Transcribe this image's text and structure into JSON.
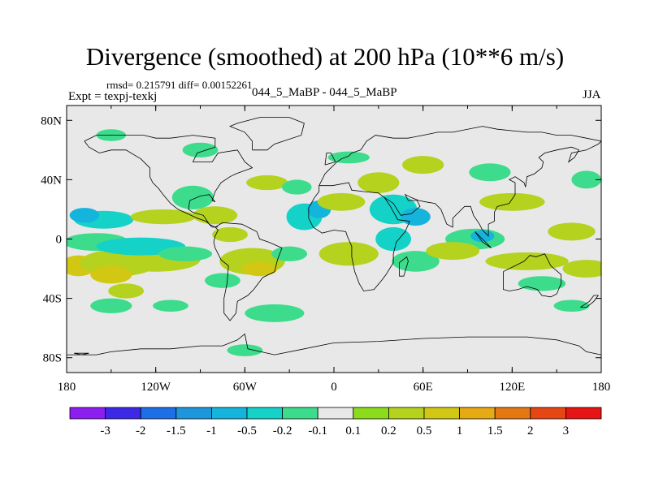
{
  "header": {
    "title": "Divergence (smoothed) at 200 hPa (10**6 m/s)",
    "stats": "rmsd= 0.215791 diff= 0.00152261",
    "expt": "Expt = texpj-texkj",
    "case": "044_5_MaBP - 044_5_MaBP",
    "season": "JJA"
  },
  "chart_data": {
    "type": "heatmap",
    "title": "Divergence (smoothed) at 200 hPa (10**6 m/s)",
    "xlabel": "",
    "ylabel": "",
    "xlim": [
      -180,
      180
    ],
    "ylim": [
      -90,
      90
    ],
    "x_ticks": [
      {
        "value": -180,
        "label": "180"
      },
      {
        "value": -120,
        "label": "120W"
      },
      {
        "value": -60,
        "label": "60W"
      },
      {
        "value": 0,
        "label": "0"
      },
      {
        "value": 60,
        "label": "60E"
      },
      {
        "value": 120,
        "label": "120E"
      },
      {
        "value": 180,
        "label": "180"
      }
    ],
    "y_ticks": [
      {
        "value": 80,
        "label": "80N"
      },
      {
        "value": 40,
        "label": "40N"
      },
      {
        "value": 0,
        "label": "0"
      },
      {
        "value": -40,
        "label": "40S"
      },
      {
        "value": -80,
        "label": "80S"
      }
    ],
    "colorbar": {
      "colors": [
        "#8c1ef0",
        "#3c28e6",
        "#1e6ee6",
        "#1e96dc",
        "#14b4dc",
        "#14d2c8",
        "#3cdc8c",
        "#e8e8e8",
        "#8cdc1e",
        "#b4d21e",
        "#d2c814",
        "#e6aa14",
        "#e67814",
        "#e64614",
        "#e61414"
      ],
      "labels": [
        "-3",
        "-2",
        "-1.5",
        "-1",
        "-0.5",
        "-0.2",
        "-0.1",
        "0.1",
        "0.2",
        "0.5",
        "1",
        "1.5",
        "2",
        "3"
      ]
    },
    "features": [
      {
        "lon": -172,
        "lat": -18,
        "rx": 12,
        "ry": 7,
        "level": 10
      },
      {
        "lon": -145,
        "lat": -16,
        "rx": 26,
        "ry": 9,
        "level": 9
      },
      {
        "lon": -150,
        "lat": -24,
        "rx": 14,
        "ry": 6,
        "level": 10
      },
      {
        "lon": -120,
        "lat": -14,
        "rx": 30,
        "ry": 8,
        "level": 9
      },
      {
        "lon": -160,
        "lat": -2,
        "rx": 22,
        "ry": 6,
        "level": 6
      },
      {
        "lon": -130,
        "lat": -5,
        "rx": 30,
        "ry": 6,
        "level": 5
      },
      {
        "lon": -155,
        "lat": 13,
        "rx": 20,
        "ry": 6,
        "level": 5
      },
      {
        "lon": -168,
        "lat": 16,
        "rx": 10,
        "ry": 5,
        "level": 4
      },
      {
        "lon": -115,
        "lat": 15,
        "rx": 22,
        "ry": 5,
        "level": 9
      },
      {
        "lon": -110,
        "lat": -45,
        "rx": 12,
        "ry": 4,
        "level": 6
      },
      {
        "lon": -150,
        "lat": -45,
        "rx": 14,
        "ry": 5,
        "level": 6
      },
      {
        "lon": -95,
        "lat": 28,
        "rx": 14,
        "ry": 8,
        "level": 6
      },
      {
        "lon": -80,
        "lat": 16,
        "rx": 15,
        "ry": 6,
        "level": 9
      },
      {
        "lon": -70,
        "lat": 3,
        "rx": 12,
        "ry": 5,
        "level": 9
      },
      {
        "lon": -75,
        "lat": -28,
        "rx": 12,
        "ry": 5,
        "level": 6
      },
      {
        "lon": -55,
        "lat": -15,
        "rx": 22,
        "ry": 9,
        "level": 9
      },
      {
        "lon": -50,
        "lat": -20,
        "rx": 12,
        "ry": 5,
        "level": 10
      },
      {
        "lon": -30,
        "lat": -10,
        "rx": 12,
        "ry": 5,
        "level": 6
      },
      {
        "lon": -40,
        "lat": -50,
        "rx": 20,
        "ry": 6,
        "level": 6
      },
      {
        "lon": -20,
        "lat": 15,
        "rx": 12,
        "ry": 9,
        "level": 5
      },
      {
        "lon": -10,
        "lat": 20,
        "rx": 8,
        "ry": 6,
        "level": 4
      },
      {
        "lon": 10,
        "lat": -10,
        "rx": 20,
        "ry": 8,
        "level": 9
      },
      {
        "lon": 5,
        "lat": 25,
        "rx": 16,
        "ry": 6,
        "level": 9
      },
      {
        "lon": 40,
        "lat": 20,
        "rx": 16,
        "ry": 10,
        "level": 5
      },
      {
        "lon": 55,
        "lat": 15,
        "rx": 10,
        "ry": 6,
        "level": 4
      },
      {
        "lon": 40,
        "lat": 0,
        "rx": 12,
        "ry": 8,
        "level": 5
      },
      {
        "lon": 55,
        "lat": -15,
        "rx": 16,
        "ry": 7,
        "level": 6
      },
      {
        "lon": 30,
        "lat": 38,
        "rx": 14,
        "ry": 7,
        "level": 9
      },
      {
        "lon": -45,
        "lat": 38,
        "rx": 14,
        "ry": 5,
        "level": 9
      },
      {
        "lon": -100,
        "lat": -10,
        "rx": 18,
        "ry": 5,
        "level": 6
      },
      {
        "lon": 95,
        "lat": 0,
        "rx": 20,
        "ry": 7,
        "level": 6
      },
      {
        "lon": 100,
        "lat": 2,
        "rx": 8,
        "ry": 4,
        "level": 4
      },
      {
        "lon": 80,
        "lat": -8,
        "rx": 18,
        "ry": 6,
        "level": 9
      },
      {
        "lon": 130,
        "lat": -15,
        "rx": 28,
        "ry": 6,
        "level": 9
      },
      {
        "lon": 140,
        "lat": -30,
        "rx": 16,
        "ry": 5,
        "level": 6
      },
      {
        "lon": 170,
        "lat": -20,
        "rx": 16,
        "ry": 6,
        "level": 9
      },
      {
        "lon": 160,
        "lat": 5,
        "rx": 16,
        "ry": 6,
        "level": 9
      },
      {
        "lon": 120,
        "lat": 25,
        "rx": 22,
        "ry": 6,
        "level": 9
      },
      {
        "lon": 105,
        "lat": 45,
        "rx": 14,
        "ry": 6,
        "level": 6
      },
      {
        "lon": 60,
        "lat": 50,
        "rx": 14,
        "ry": 6,
        "level": 9
      },
      {
        "lon": 10,
        "lat": 55,
        "rx": 14,
        "ry": 4,
        "level": 6
      },
      {
        "lon": -90,
        "lat": 60,
        "rx": 12,
        "ry": 5,
        "level": 6
      },
      {
        "lon": -150,
        "lat": 70,
        "rx": 10,
        "ry": 4,
        "level": 6
      },
      {
        "lon": 160,
        "lat": -45,
        "rx": 12,
        "ry": 4,
        "level": 6
      },
      {
        "lon": -60,
        "lat": -75,
        "rx": 12,
        "ry": 4,
        "level": 6
      },
      {
        "lon": -25,
        "lat": 35,
        "rx": 10,
        "ry": 5,
        "level": 6
      },
      {
        "lon": 170,
        "lat": 40,
        "rx": 10,
        "ry": 6,
        "level": 6
      },
      {
        "lon": -140,
        "lat": -35,
        "rx": 12,
        "ry": 5,
        "level": 9
      }
    ]
  }
}
